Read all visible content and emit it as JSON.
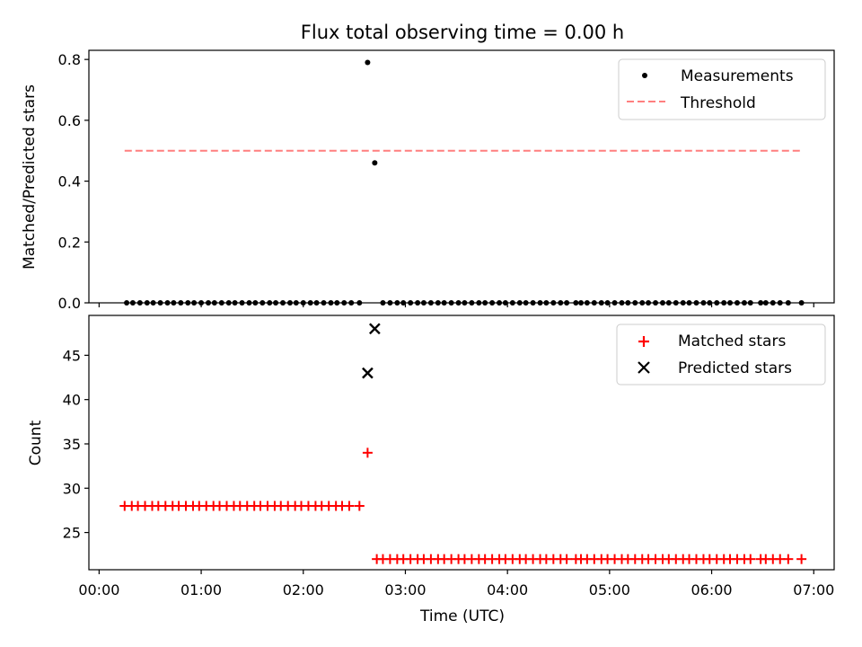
{
  "chart_data": [
    {
      "type": "scatter",
      "title": "Flux total observing time = 0.00 h",
      "ylabel": "Matched/Predicted stars",
      "xlabel": "",
      "ylim": [
        0,
        0.83
      ],
      "xlim": [
        -0.1,
        7.2
      ],
      "yticks": [
        0.0,
        0.2,
        0.4,
        0.6,
        0.8
      ],
      "ytick_labels": [
        "0.0",
        "0.2",
        "0.4",
        "0.6",
        "0.8"
      ],
      "legend_position": "top-right",
      "legend": [
        "Measurements",
        "Threshold"
      ],
      "colors": {
        "measurements": "#000000",
        "threshold": "#ff7f7f"
      },
      "measurements": {
        "x": [
          0.27,
          0.33,
          0.4,
          0.47,
          0.53,
          0.6,
          0.67,
          0.73,
          0.8,
          0.87,
          0.93,
          1.0,
          1.07,
          1.13,
          1.2,
          1.27,
          1.33,
          1.4,
          1.47,
          1.53,
          1.6,
          1.67,
          1.73,
          1.8,
          1.87,
          1.93,
          2.0,
          2.07,
          2.13,
          2.2,
          2.27,
          2.33,
          2.4,
          2.47,
          2.55,
          2.63,
          2.7,
          2.78,
          2.85,
          2.92,
          2.98,
          3.05,
          3.12,
          3.18,
          3.25,
          3.32,
          3.38,
          3.45,
          3.52,
          3.58,
          3.65,
          3.72,
          3.78,
          3.85,
          3.92,
          3.98,
          4.05,
          4.12,
          4.18,
          4.25,
          4.32,
          4.38,
          4.45,
          4.52,
          4.58,
          4.67,
          4.72,
          4.78,
          4.85,
          4.92,
          4.98,
          5.05,
          5.12,
          5.18,
          5.25,
          5.32,
          5.38,
          5.45,
          5.52,
          5.58,
          5.65,
          5.72,
          5.78,
          5.85,
          5.92,
          5.98,
          6.05,
          6.12,
          6.18,
          6.25,
          6.32,
          6.38,
          6.48,
          6.53,
          6.6,
          6.67,
          6.75,
          6.88
        ],
        "y": [
          0,
          0,
          0,
          0,
          0,
          0,
          0,
          0,
          0,
          0,
          0,
          0,
          0,
          0,
          0,
          0,
          0,
          0,
          0,
          0,
          0,
          0,
          0,
          0,
          0,
          0,
          0,
          0,
          0,
          0,
          0,
          0,
          0,
          0,
          0,
          0.79,
          0.46,
          0,
          0,
          0,
          0,
          0,
          0,
          0,
          0,
          0,
          0,
          0,
          0,
          0,
          0,
          0,
          0,
          0,
          0,
          0,
          0,
          0,
          0,
          0,
          0,
          0,
          0,
          0,
          0,
          0,
          0,
          0,
          0,
          0,
          0,
          0,
          0,
          0,
          0,
          0,
          0,
          0,
          0,
          0,
          0,
          0,
          0,
          0,
          0,
          0,
          0,
          0,
          0,
          0,
          0,
          0,
          0,
          0,
          0,
          0,
          0,
          0
        ]
      },
      "threshold": {
        "x": [
          0.25,
          6.88
        ],
        "y": 0.5
      }
    },
    {
      "type": "scatter",
      "title": "",
      "ylabel": "Count",
      "xlabel": "Time (UTC)",
      "ylim": [
        20.8,
        49.5
      ],
      "xlim": [
        -0.1,
        7.2
      ],
      "yticks": [
        25,
        30,
        35,
        40,
        45
      ],
      "ytick_labels": [
        "25",
        "30",
        "35",
        "40",
        "45"
      ],
      "xticks": [
        0,
        1,
        2,
        3,
        4,
        5,
        6,
        7
      ],
      "xtick_labels": [
        "00:00",
        "01:00",
        "02:00",
        "03:00",
        "04:00",
        "05:00",
        "06:00",
        "07:00"
      ],
      "legend_position": "top-right",
      "legend": [
        "Matched stars",
        "Predicted stars"
      ],
      "colors": {
        "matched": "#ff0000",
        "predicted": "#000000"
      },
      "matched": {
        "x": [
          0.25,
          0.32,
          0.38,
          0.45,
          0.52,
          0.58,
          0.65,
          0.72,
          0.78,
          0.85,
          0.92,
          0.98,
          1.05,
          1.12,
          1.18,
          1.25,
          1.32,
          1.38,
          1.45,
          1.52,
          1.58,
          1.65,
          1.72,
          1.78,
          1.85,
          1.92,
          1.98,
          2.05,
          2.12,
          2.18,
          2.25,
          2.32,
          2.38,
          2.45,
          2.55,
          2.63,
          2.72,
          2.78,
          2.85,
          2.92,
          2.98,
          3.05,
          3.12,
          3.18,
          3.25,
          3.32,
          3.38,
          3.45,
          3.52,
          3.58,
          3.65,
          3.72,
          3.78,
          3.85,
          3.92,
          3.98,
          4.05,
          4.12,
          4.18,
          4.25,
          4.32,
          4.38,
          4.45,
          4.52,
          4.58,
          4.67,
          4.72,
          4.78,
          4.85,
          4.92,
          4.98,
          5.05,
          5.12,
          5.18,
          5.25,
          5.32,
          5.38,
          5.45,
          5.52,
          5.58,
          5.65,
          5.72,
          5.78,
          5.85,
          5.92,
          5.98,
          6.05,
          6.12,
          6.18,
          6.25,
          6.32,
          6.38,
          6.48,
          6.53,
          6.6,
          6.67,
          6.75,
          6.88
        ],
        "y": [
          28,
          28,
          28,
          28,
          28,
          28,
          28,
          28,
          28,
          28,
          28,
          28,
          28,
          28,
          28,
          28,
          28,
          28,
          28,
          28,
          28,
          28,
          28,
          28,
          28,
          28,
          28,
          28,
          28,
          28,
          28,
          28,
          28,
          28,
          28,
          34,
          22,
          22,
          22,
          22,
          22,
          22,
          22,
          22,
          22,
          22,
          22,
          22,
          22,
          22,
          22,
          22,
          22,
          22,
          22,
          22,
          22,
          22,
          22,
          22,
          22,
          22,
          22,
          22,
          22,
          22,
          22,
          22,
          22,
          22,
          22,
          22,
          22,
          22,
          22,
          22,
          22,
          22,
          22,
          22,
          22,
          22,
          22,
          22,
          22,
          22,
          22,
          22,
          22,
          22,
          22,
          22,
          22,
          22,
          22,
          22,
          22,
          22
        ]
      },
      "predicted": {
        "x": [
          2.63,
          2.7
        ],
        "y": [
          43,
          48
        ]
      }
    }
  ]
}
